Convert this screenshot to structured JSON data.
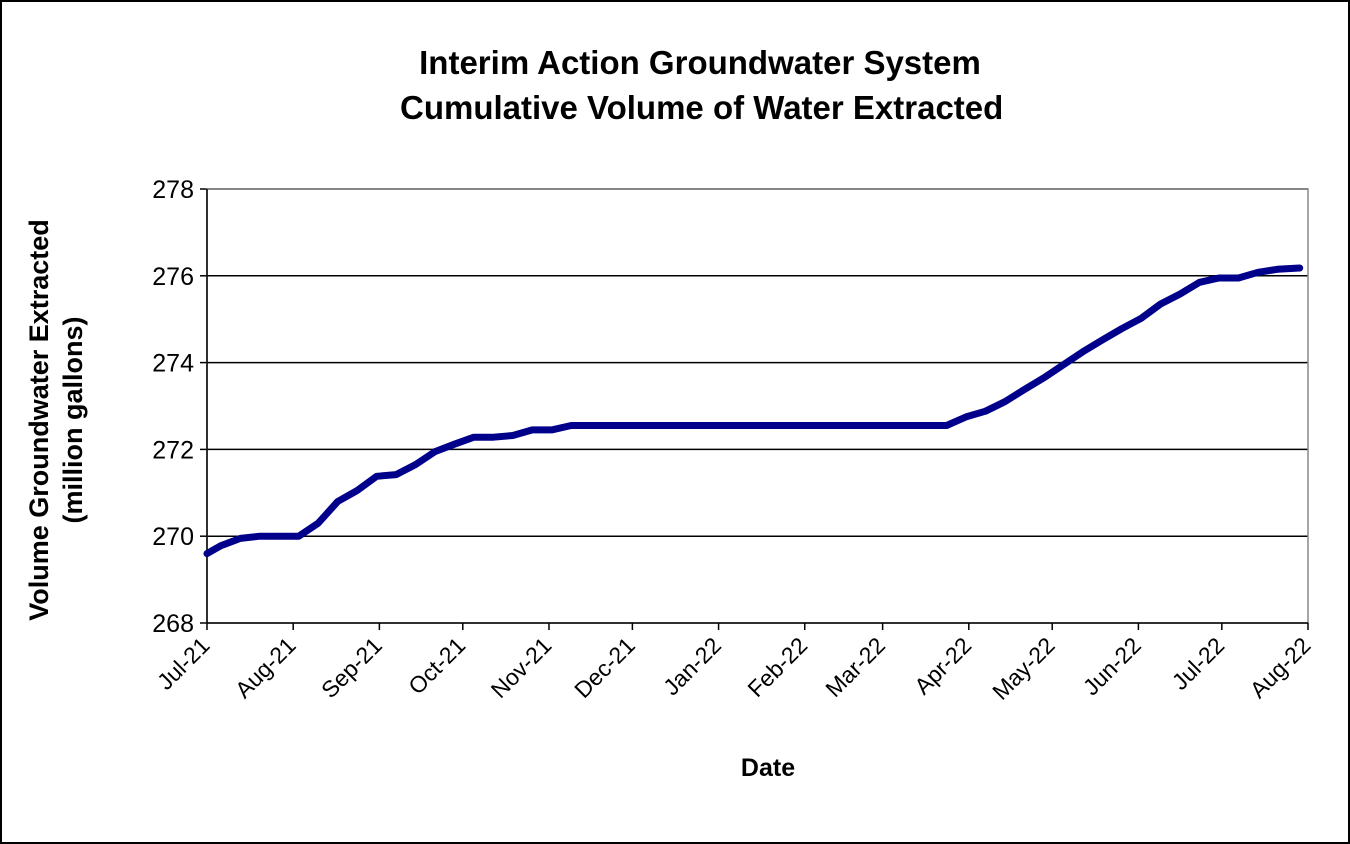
{
  "chart_data": {
    "type": "line",
    "title_lines": [
      "Interim  Action Groundwater System",
      "Cumulative Volume  of Water Extracted"
    ],
    "xlabel": "Date",
    "ylabel_lines": [
      "Volume Groundwater Extracted",
      "(million gallons)"
    ],
    "x_tick_labels": [
      "Jul-21",
      "Aug-21",
      "Sep-21",
      "Oct-21",
      "Nov-21",
      "Dec-21",
      "Jan-22",
      "Feb-22",
      "Mar-22",
      "Apr-22",
      "May-22",
      "Jun-22",
      "Jul-22",
      "Aug-22"
    ],
    "y_ticks": [
      268,
      270,
      272,
      274,
      276,
      278
    ],
    "ylim": [
      268,
      278
    ],
    "xlim": [
      "2021-07-01",
      "2022-08-01"
    ],
    "grid": "horizontal",
    "colors": {
      "line": "#00008B",
      "grid": "#000000",
      "axis": "#000000"
    },
    "series": [
      {
        "points": [
          [
            "2021-07-01",
            269.6
          ],
          [
            "2021-07-06",
            269.78
          ],
          [
            "2021-07-13",
            269.95
          ],
          [
            "2021-07-20",
            270.0
          ],
          [
            "2021-07-27",
            270.0
          ],
          [
            "2021-08-03",
            270.0
          ],
          [
            "2021-08-10",
            270.3
          ],
          [
            "2021-08-17",
            270.8
          ],
          [
            "2021-08-24",
            271.05
          ],
          [
            "2021-08-31",
            271.38
          ],
          [
            "2021-09-07",
            271.42
          ],
          [
            "2021-09-14",
            271.65
          ],
          [
            "2021-09-21",
            271.95
          ],
          [
            "2021-09-28",
            272.12
          ],
          [
            "2021-10-05",
            272.28
          ],
          [
            "2021-10-12",
            272.28
          ],
          [
            "2021-10-19",
            272.32
          ],
          [
            "2021-10-26",
            272.45
          ],
          [
            "2021-11-02",
            272.45
          ],
          [
            "2021-11-09",
            272.55
          ],
          [
            "2021-11-16",
            272.55
          ],
          [
            "2021-11-23",
            272.55
          ],
          [
            "2021-12-01",
            272.55
          ],
          [
            "2021-12-15",
            272.55
          ],
          [
            "2022-01-01",
            272.55
          ],
          [
            "2022-01-15",
            272.55
          ],
          [
            "2022-02-01",
            272.55
          ],
          [
            "2022-02-15",
            272.55
          ],
          [
            "2022-03-01",
            272.55
          ],
          [
            "2022-03-15",
            272.55
          ],
          [
            "2022-03-24",
            272.55
          ],
          [
            "2022-03-31",
            272.75
          ],
          [
            "2022-04-07",
            272.88
          ],
          [
            "2022-04-14",
            273.1
          ],
          [
            "2022-04-21",
            273.38
          ],
          [
            "2022-04-28",
            273.65
          ],
          [
            "2022-05-05",
            273.95
          ],
          [
            "2022-05-12",
            274.25
          ],
          [
            "2022-05-19",
            274.52
          ],
          [
            "2022-05-26",
            274.78
          ],
          [
            "2022-06-02",
            275.02
          ],
          [
            "2022-06-09",
            275.35
          ],
          [
            "2022-06-16",
            275.58
          ],
          [
            "2022-06-23",
            275.85
          ],
          [
            "2022-06-30",
            275.95
          ],
          [
            "2022-07-07",
            275.95
          ],
          [
            "2022-07-14",
            276.08
          ],
          [
            "2022-07-21",
            276.15
          ],
          [
            "2022-07-29",
            276.18
          ]
        ]
      }
    ]
  }
}
